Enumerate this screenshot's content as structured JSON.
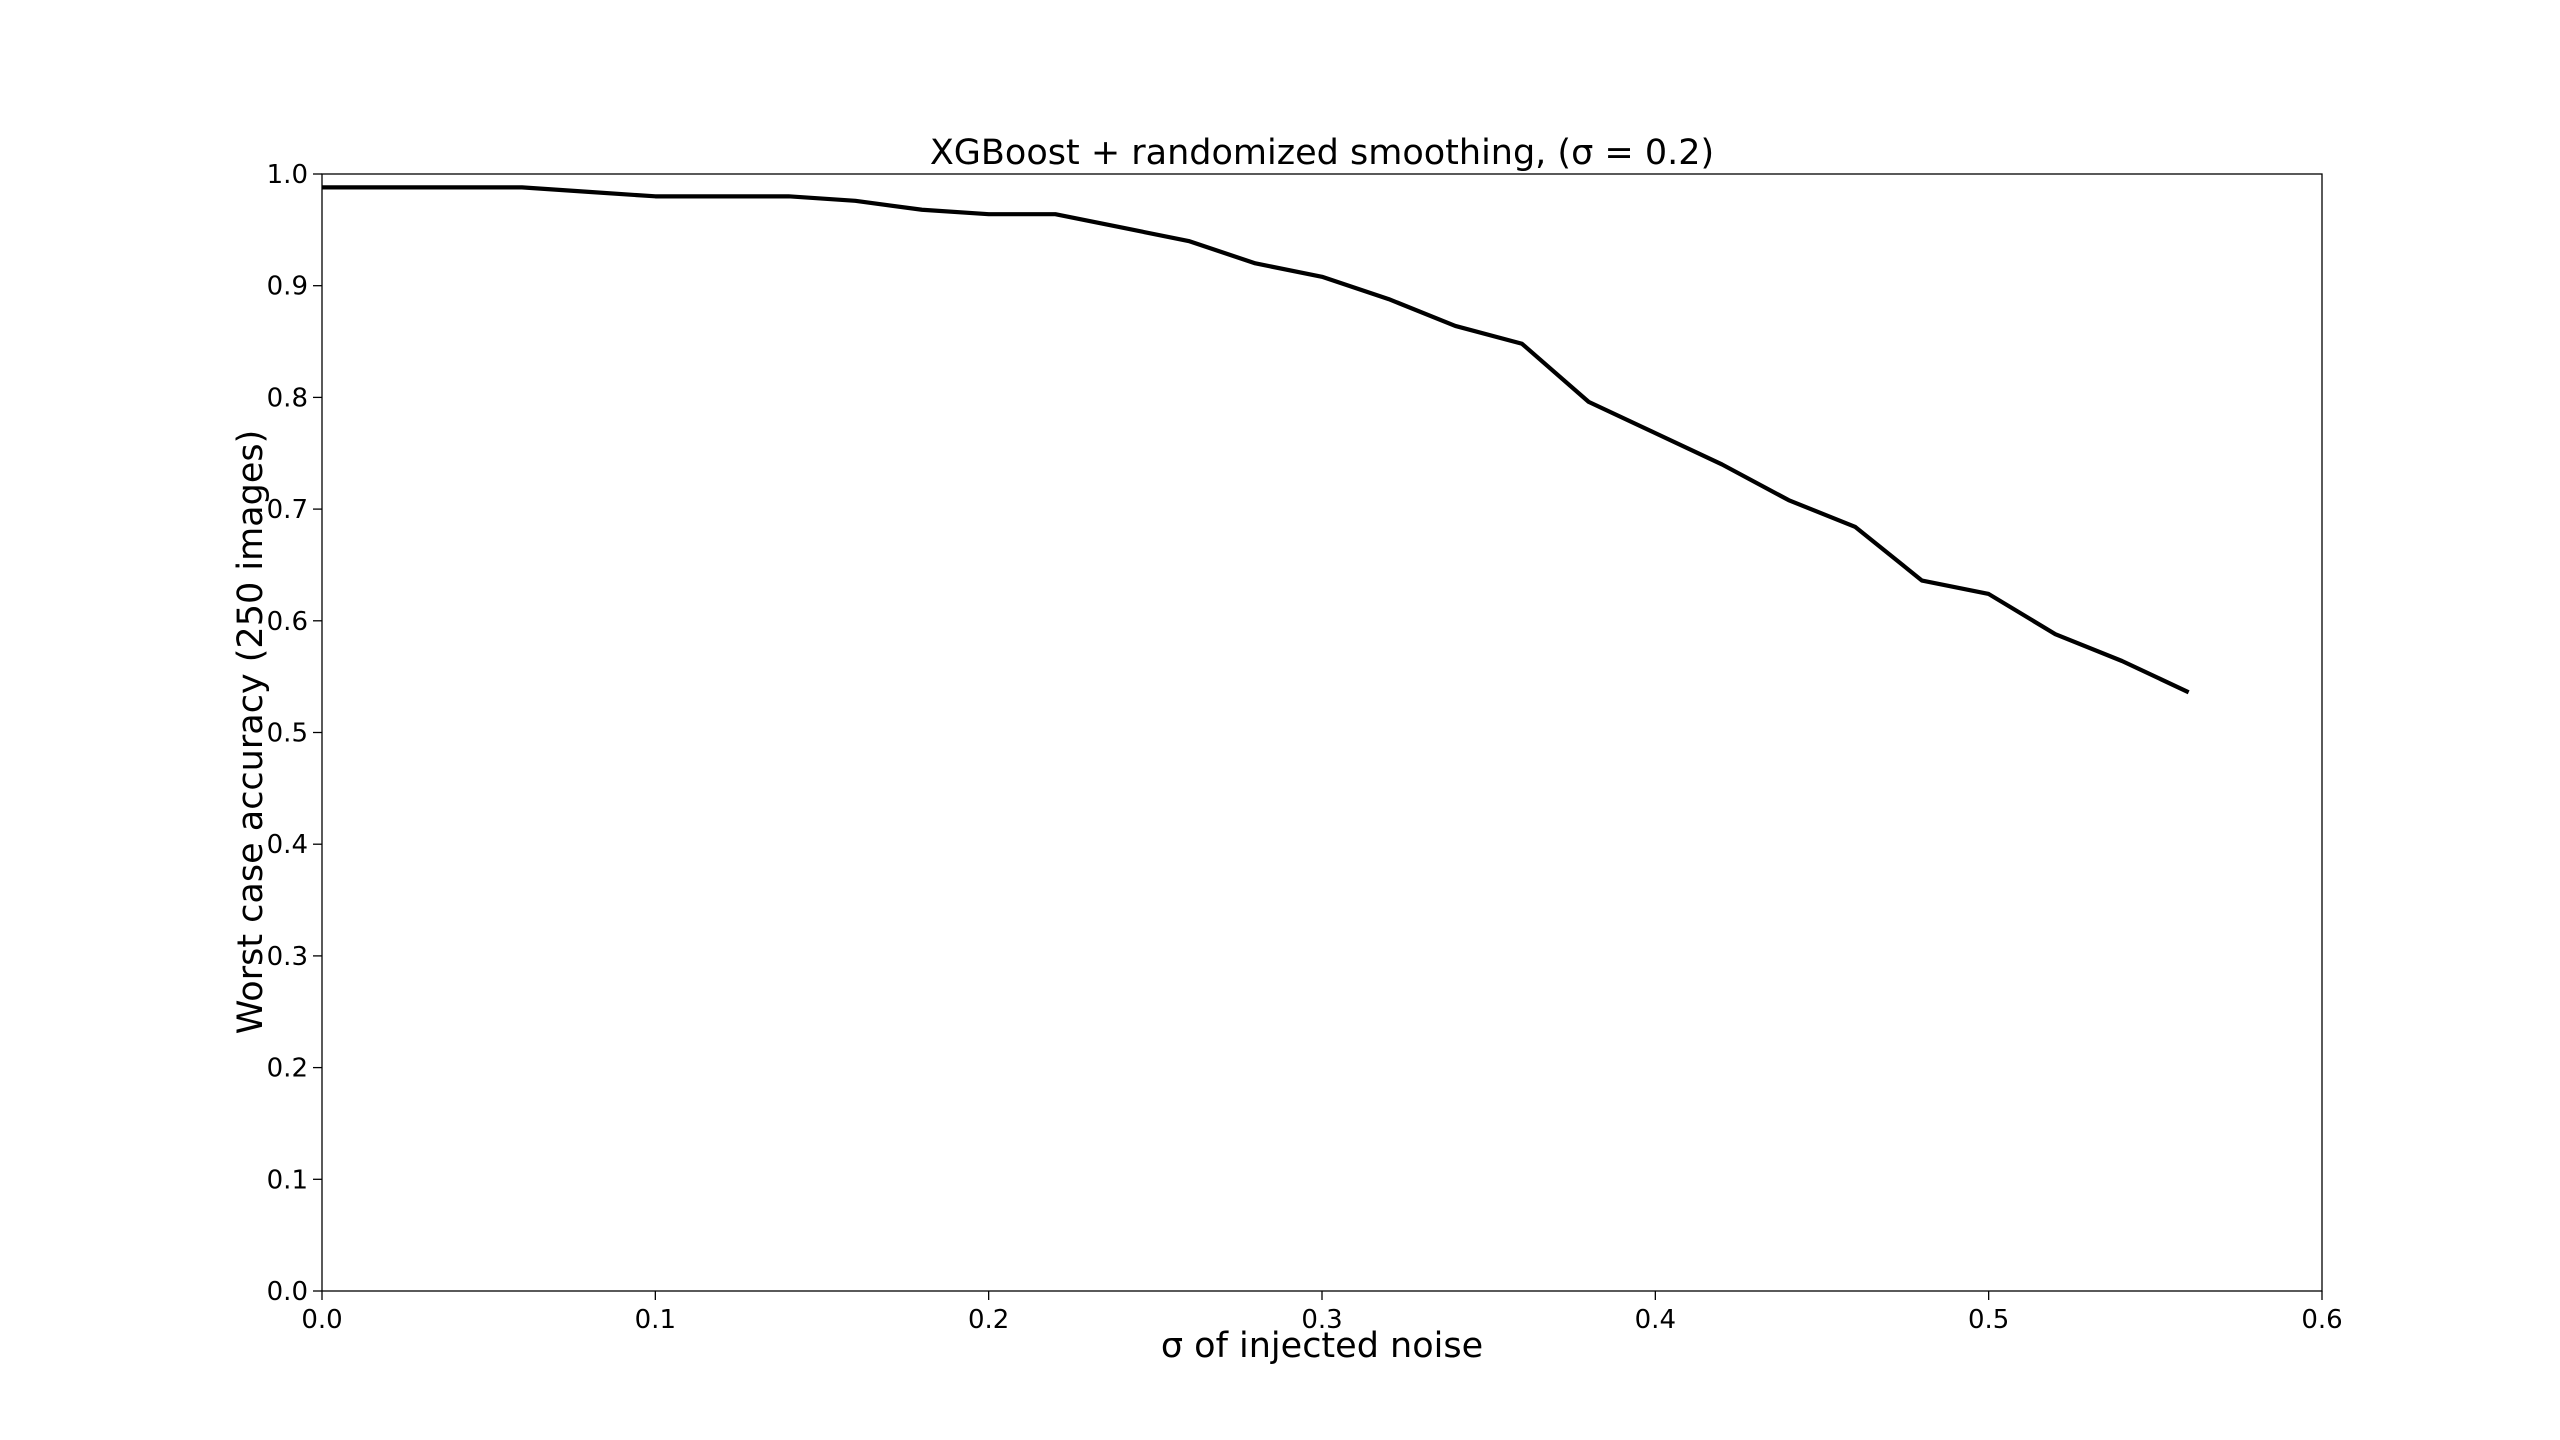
{
  "chart_data": {
    "type": "line",
    "title": "XGBoost + randomized smoothing, (σ = 0.2)",
    "xlabel": "σ of injected noise",
    "ylabel": "Worst case accuracy (250 images)",
    "xlim": [
      0.0,
      0.6
    ],
    "ylim": [
      0.0,
      1.0
    ],
    "x_ticks": [
      "0.0",
      "0.1",
      "0.2",
      "0.3",
      "0.4",
      "0.5",
      "0.6"
    ],
    "y_ticks": [
      "0.0",
      "0.1",
      "0.2",
      "0.3",
      "0.4",
      "0.5",
      "0.6",
      "0.7",
      "0.8",
      "0.9",
      "1.0"
    ],
    "grid": false,
    "legend": "none",
    "series": [
      {
        "color": "#000000",
        "x": [
          0.0,
          0.02,
          0.04,
          0.06,
          0.08,
          0.1,
          0.12,
          0.14,
          0.16,
          0.18,
          0.2,
          0.22,
          0.24,
          0.26,
          0.28,
          0.3,
          0.32,
          0.34,
          0.36,
          0.38,
          0.4,
          0.42,
          0.44,
          0.46,
          0.48,
          0.5,
          0.52,
          0.54,
          0.56
        ],
        "y": [
          0.988,
          0.988,
          0.988,
          0.988,
          0.984,
          0.98,
          0.98,
          0.98,
          0.976,
          0.968,
          0.964,
          0.964,
          0.952,
          0.94,
          0.92,
          0.908,
          0.888,
          0.864,
          0.848,
          0.796,
          0.768,
          0.74,
          0.708,
          0.684,
          0.636,
          0.624,
          0.588,
          0.564,
          0.536
        ]
      }
    ]
  }
}
